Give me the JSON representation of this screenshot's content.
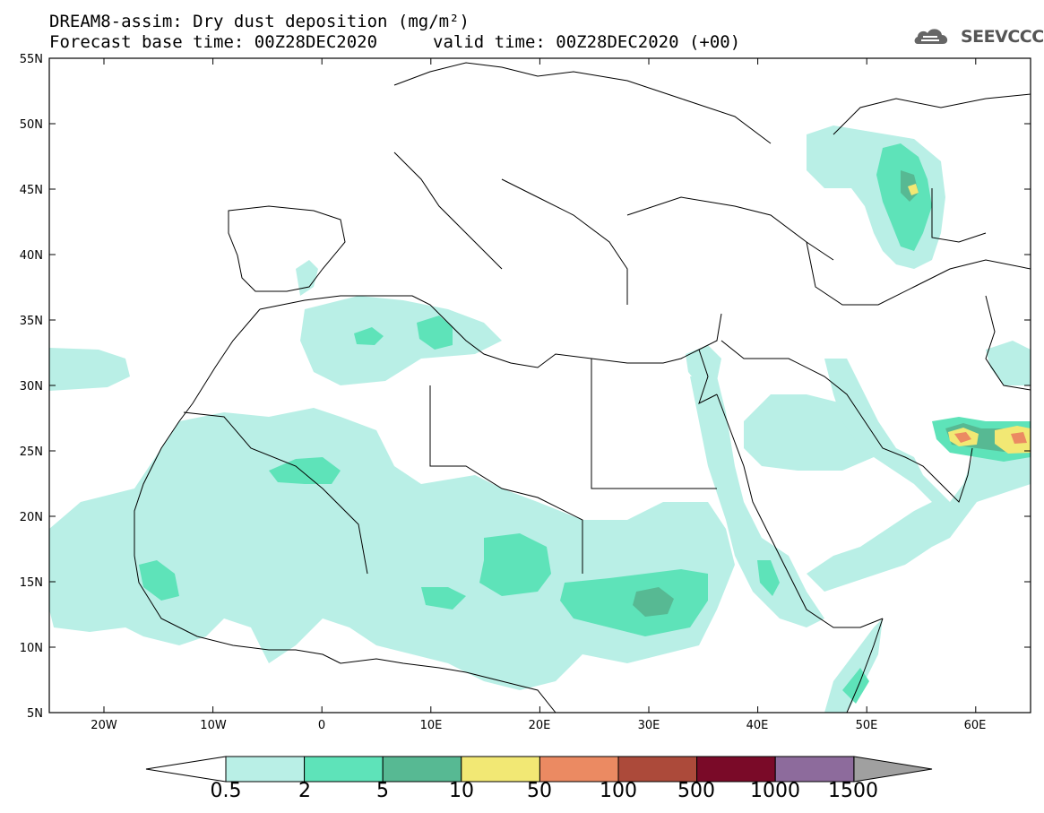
{
  "header": {
    "title_line1": "DREAM8-assim: Dry dust deposition (mg/m²)",
    "title_line2_left": "Forecast base time: 00Z28DEC2020",
    "title_line2_right": "valid time: 00Z28DEC2020 (+00)",
    "logo_text": "SEEVCCC"
  },
  "axes": {
    "lat_labels": [
      "55N",
      "50N",
      "45N",
      "40N",
      "35N",
      "30N",
      "25N",
      "20N",
      "15N",
      "10N",
      "5N"
    ],
    "lon_labels": [
      "20W",
      "10W",
      "0",
      "10E",
      "20E",
      "30E",
      "40E",
      "50E",
      "60E"
    ]
  },
  "legend": {
    "labels": [
      "0.5",
      "2",
      "5",
      "10",
      "50",
      "100",
      "500",
      "1000",
      "1500"
    ],
    "colors": [
      "#b9efe6",
      "#5ee3b9",
      "#57b993",
      "#f2e874",
      "#eb8a62",
      "#ac4a3a",
      "#7a0a28",
      "#8d6b9c",
      "#a0a0a0"
    ]
  },
  "colors": {
    "level1": "#b9efe6",
    "level2": "#5ee3b9",
    "level3": "#57b993",
    "level4": "#f2e874",
    "level5": "#eb8a62"
  }
}
